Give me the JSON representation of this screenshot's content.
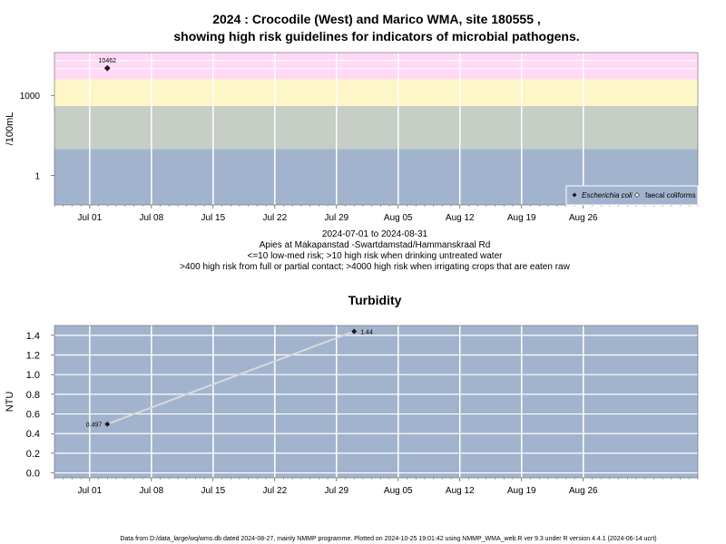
{
  "colors": {
    "band_pink": "#ffd9f5",
    "band_yellow": "#fdf6c6",
    "band_green": "#c6cec5",
    "band_blue": "#a2b4cd",
    "panel_bg": "#a2b4cd",
    "grid": "#ffffff",
    "line": "#d9d9d9",
    "point": "#1a1a1a"
  },
  "top": {
    "title_line1": "2024 : Crocodile (West) and Marico WMA, site 180555 ,",
    "title_line2": "showing high risk guidelines for indicators of microbial pathogens.",
    "caption_line1": "2024-07-01 to 2024-08-31",
    "caption_line2": "Apies at Makapanstad -Swartdamstad/Hammanskraal Rd",
    "caption_line3": "<=10 low-med risk; >10 high risk when drinking untreated water",
    "caption_line4": ">400 high risk from full or partial contact; >4000 high risk when irrigating crops that are eaten raw",
    "legend_ecoli": "Escherichia coli",
    "legend_fecal": "faecal coliforms"
  },
  "bottom": {
    "title": "Turbidity"
  },
  "footer": "Data from D:/data_large/wq/wms.db dated 2024-08-27, mainly NMMP programme. Plotted on 2024-10-25 19:01:42 using NMMP_WMA_web.R ver 9.3 under R version 4.4.1 (2024-06-14 ucrt)",
  "chart_data": [
    {
      "type": "scatter",
      "title": "2024 : Crocodile (West) and Marico WMA, site 180555 , showing high risk guidelines for indicators of microbial pathogens.",
      "ylabel": "/100mL",
      "y_scale": "log10",
      "xlim": [
        "2024-06-27",
        "2024-09-08"
      ],
      "x_ticks": [
        "Jul 01",
        "Jul 08",
        "Jul 15",
        "Jul 22",
        "Jul 29",
        "Aug 05",
        "Aug 12",
        "Aug 19",
        "Aug 26"
      ],
      "x_tick_dates": [
        "2024-07-01",
        "2024-07-08",
        "2024-07-15",
        "2024-07-22",
        "2024-07-29",
        "2024-08-05",
        "2024-08-12",
        "2024-08-19",
        "2024-08-26"
      ],
      "y_ticks": [
        "1",
        "1000"
      ],
      "y_tick_values": [
        1,
        1000
      ],
      "ylim": [
        0.08,
        40000
      ],
      "risk_bands": [
        {
          "from": 0.08,
          "to": 10,
          "color": "#a2b4cd"
        },
        {
          "from": 10,
          "to": 400,
          "color": "#c6cec5"
        },
        {
          "from": 400,
          "to": 4000,
          "color": "#fdf6c6"
        },
        {
          "from": 4000,
          "to": 40000,
          "color": "#ffd9f5"
        }
      ],
      "series": [
        {
          "name": "Escherichia coli",
          "points": [
            {
              "x": "2024-07-03",
              "y": 10462,
              "label": "10462"
            }
          ]
        },
        {
          "name": "faecal coliforms",
          "points": []
        }
      ],
      "legend_position": "bottom-right",
      "grid": true
    },
    {
      "type": "line",
      "title": "Turbidity",
      "ylabel": "NTU",
      "xlim": [
        "2024-06-27",
        "2024-09-08"
      ],
      "x_ticks": [
        "Jul 01",
        "Jul 08",
        "Jul 15",
        "Jul 22",
        "Jul 29",
        "Aug 05",
        "Aug 12",
        "Aug 19",
        "Aug 26"
      ],
      "x_tick_dates": [
        "2024-07-01",
        "2024-07-08",
        "2024-07-15",
        "2024-07-22",
        "2024-07-29",
        "2024-08-05",
        "2024-08-12",
        "2024-08-19",
        "2024-08-26"
      ],
      "y_ticks": [
        "0.0",
        "0.2",
        "0.4",
        "0.6",
        "0.8",
        "1.0",
        "1.2",
        "1.4"
      ],
      "y_tick_values": [
        0,
        0.2,
        0.4,
        0.6,
        0.8,
        1.0,
        1.2,
        1.4
      ],
      "ylim": [
        -0.05,
        1.5
      ],
      "series": [
        {
          "points": [
            {
              "x": "2024-07-03",
              "y": 0.497,
              "label": "0.497"
            },
            {
              "x": "2024-07-31",
              "y": 1.44,
              "label": "1.44"
            }
          ]
        }
      ],
      "grid": true
    }
  ]
}
